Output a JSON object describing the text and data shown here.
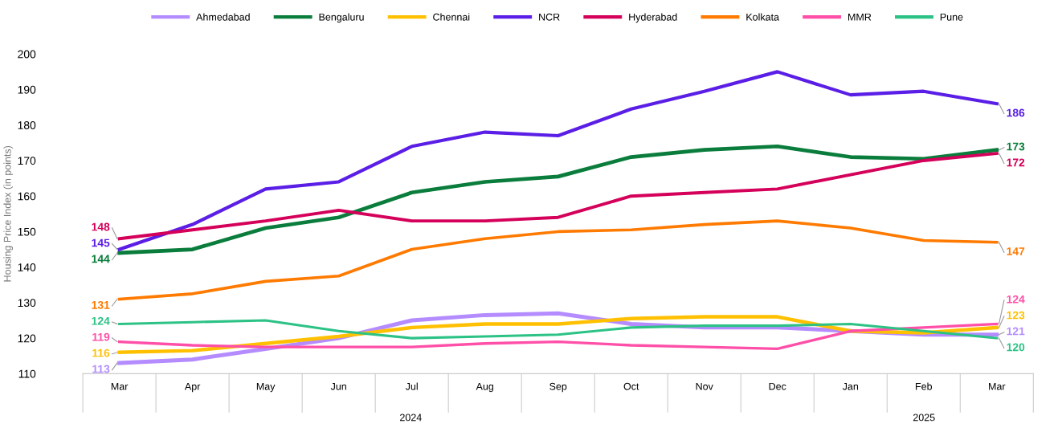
{
  "chart_data": {
    "type": "line",
    "ylabel": "Housing Price Index (in points)",
    "categories": [
      "Mar",
      "Apr",
      "May",
      "Jun",
      "Jul",
      "Aug",
      "Sep",
      "Oct",
      "Nov",
      "Dec",
      "Jan",
      "Feb",
      "Mar"
    ],
    "ylim": [
      110,
      200
    ],
    "yticks": [
      110,
      120,
      130,
      140,
      150,
      160,
      170,
      180,
      190,
      200
    ],
    "grid": false,
    "legend": "top",
    "marker": "none",
    "line_style": "solid",
    "annotations": [
      "2024",
      "2025"
    ],
    "series": [
      {
        "name": "Ahmedabad",
        "color": "#b48cff",
        "values": [
          113,
          114,
          117,
          120,
          125,
          126.5,
          127,
          124,
          123,
          123,
          122,
          121,
          121
        ],
        "value_labels": [
          "113",
          null,
          null,
          null,
          null,
          null,
          null,
          null,
          null,
          null,
          null,
          null,
          "121"
        ]
      },
      {
        "name": "Bengaluru",
        "color": "#0a7d3c",
        "values": [
          144,
          145,
          151,
          154,
          161,
          164,
          165.5,
          171,
          173,
          174,
          171,
          170.5,
          173
        ],
        "value_labels": [
          "144",
          null,
          null,
          null,
          null,
          null,
          null,
          null,
          null,
          null,
          null,
          null,
          "173"
        ]
      },
      {
        "name": "Chennai",
        "color": "#ffc000",
        "values": [
          116,
          116.5,
          118.5,
          120.5,
          123,
          124,
          124,
          125.5,
          126,
          126,
          122,
          121.5,
          123
        ],
        "value_labels": [
          "116",
          null,
          null,
          null,
          null,
          null,
          null,
          null,
          null,
          null,
          null,
          null,
          "123"
        ]
      },
      {
        "name": "NCR",
        "color": "#5a1ee6",
        "values": [
          145,
          152,
          162,
          164,
          174,
          178,
          177,
          184.5,
          189.5,
          195,
          188.5,
          189.5,
          186
        ],
        "value_labels": [
          "145",
          null,
          null,
          null,
          null,
          null,
          null,
          null,
          null,
          null,
          null,
          null,
          "186"
        ]
      },
      {
        "name": "Hyderabad",
        "color": "#d4005a",
        "values": [
          148,
          150.5,
          153,
          156,
          153,
          153,
          154,
          160,
          161,
          162,
          166,
          170,
          172
        ],
        "value_labels": [
          "148",
          null,
          null,
          null,
          null,
          null,
          null,
          null,
          null,
          null,
          null,
          null,
          "172"
        ]
      },
      {
        "name": "Kolkata",
        "color": "#ff7a00",
        "values": [
          131,
          132.5,
          136,
          137.5,
          145,
          148,
          150,
          150.5,
          152,
          153,
          151,
          147.5,
          147
        ],
        "value_labels": [
          "131",
          null,
          null,
          null,
          null,
          null,
          null,
          null,
          null,
          null,
          null,
          null,
          "147"
        ]
      },
      {
        "name": "MMR",
        "color": "#ff4fa8",
        "values": [
          119,
          118,
          117.5,
          117.5,
          117.5,
          118.5,
          119,
          118,
          117.5,
          117,
          122,
          123,
          124
        ],
        "value_labels": [
          "119",
          null,
          null,
          null,
          null,
          null,
          null,
          null,
          null,
          null,
          null,
          null,
          "124"
        ]
      },
      {
        "name": "Pune",
        "color": "#2cc285",
        "values": [
          124,
          124.5,
          125,
          122,
          120,
          120.5,
          121,
          123,
          123.5,
          123.5,
          124,
          122,
          120
        ],
        "value_labels": [
          "124",
          null,
          null,
          null,
          null,
          null,
          null,
          null,
          null,
          null,
          null,
          null,
          "120"
        ]
      }
    ]
  }
}
